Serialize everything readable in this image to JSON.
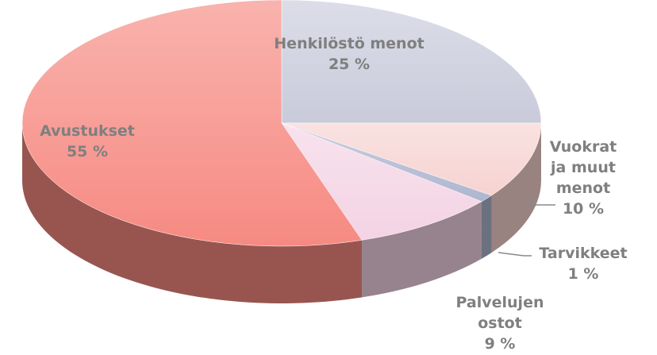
{
  "chart_data": {
    "type": "pie3d",
    "categories": [
      "Henkilöstö menot",
      "Vuokrat ja muut menot",
      "Tarvikkeet",
      "Palvelujen ostot",
      "Avustukset"
    ],
    "values": [
      25,
      10,
      1,
      9,
      55
    ],
    "value_labels": [
      "25 %",
      "10 %",
      "1 %",
      "9 %",
      "55 %"
    ],
    "colors": [
      "#c9cbdb",
      "#f6d3d1",
      "#aeb6cf",
      "#f4d3e4",
      "#f68a82"
    ]
  }
}
